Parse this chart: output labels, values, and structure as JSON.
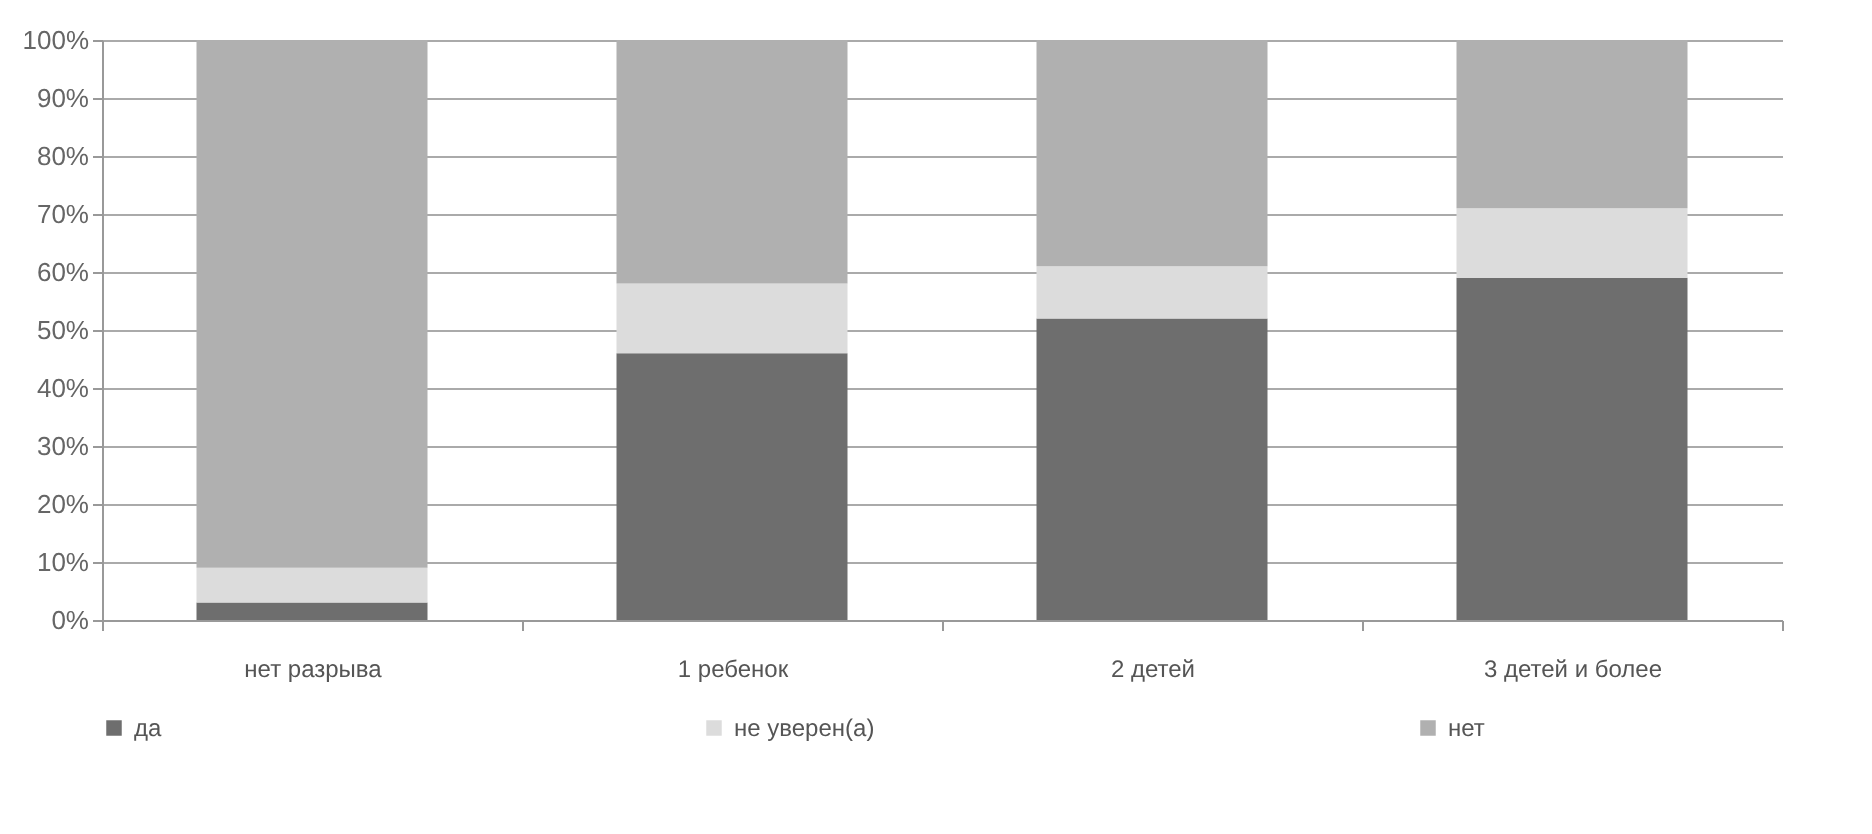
{
  "chart_data": {
    "type": "bar",
    "stacked": true,
    "categories": [
      "нет разрыва",
      "1 ребенок",
      "2 детей",
      "3 детей и более"
    ],
    "series": [
      {
        "name": "да",
        "color": "#6e6e6e",
        "values": [
          3,
          46,
          52,
          59
        ]
      },
      {
        "name": "не уверен(а)",
        "color": "#dcdcdc",
        "values": [
          6,
          12,
          9,
          12
        ]
      },
      {
        "name": "нет",
        "color": "#b0b0b0",
        "values": [
          91,
          42,
          39,
          29
        ]
      }
    ],
    "ylim": [
      0,
      100
    ],
    "yticks": [
      {
        "value": 0,
        "label": "0%"
      },
      {
        "value": 10,
        "label": "10%"
      },
      {
        "value": 20,
        "label": "20%"
      },
      {
        "value": 30,
        "label": "30%"
      },
      {
        "value": 40,
        "label": "40%"
      },
      {
        "value": 50,
        "label": "50%"
      },
      {
        "value": 60,
        "label": "60%"
      },
      {
        "value": 70,
        "label": "70%"
      },
      {
        "value": 80,
        "label": "80%"
      },
      {
        "value": 90,
        "label": "90%"
      },
      {
        "value": 100,
        "label": "100%"
      }
    ],
    "grid": "y",
    "legend": "bottom"
  }
}
